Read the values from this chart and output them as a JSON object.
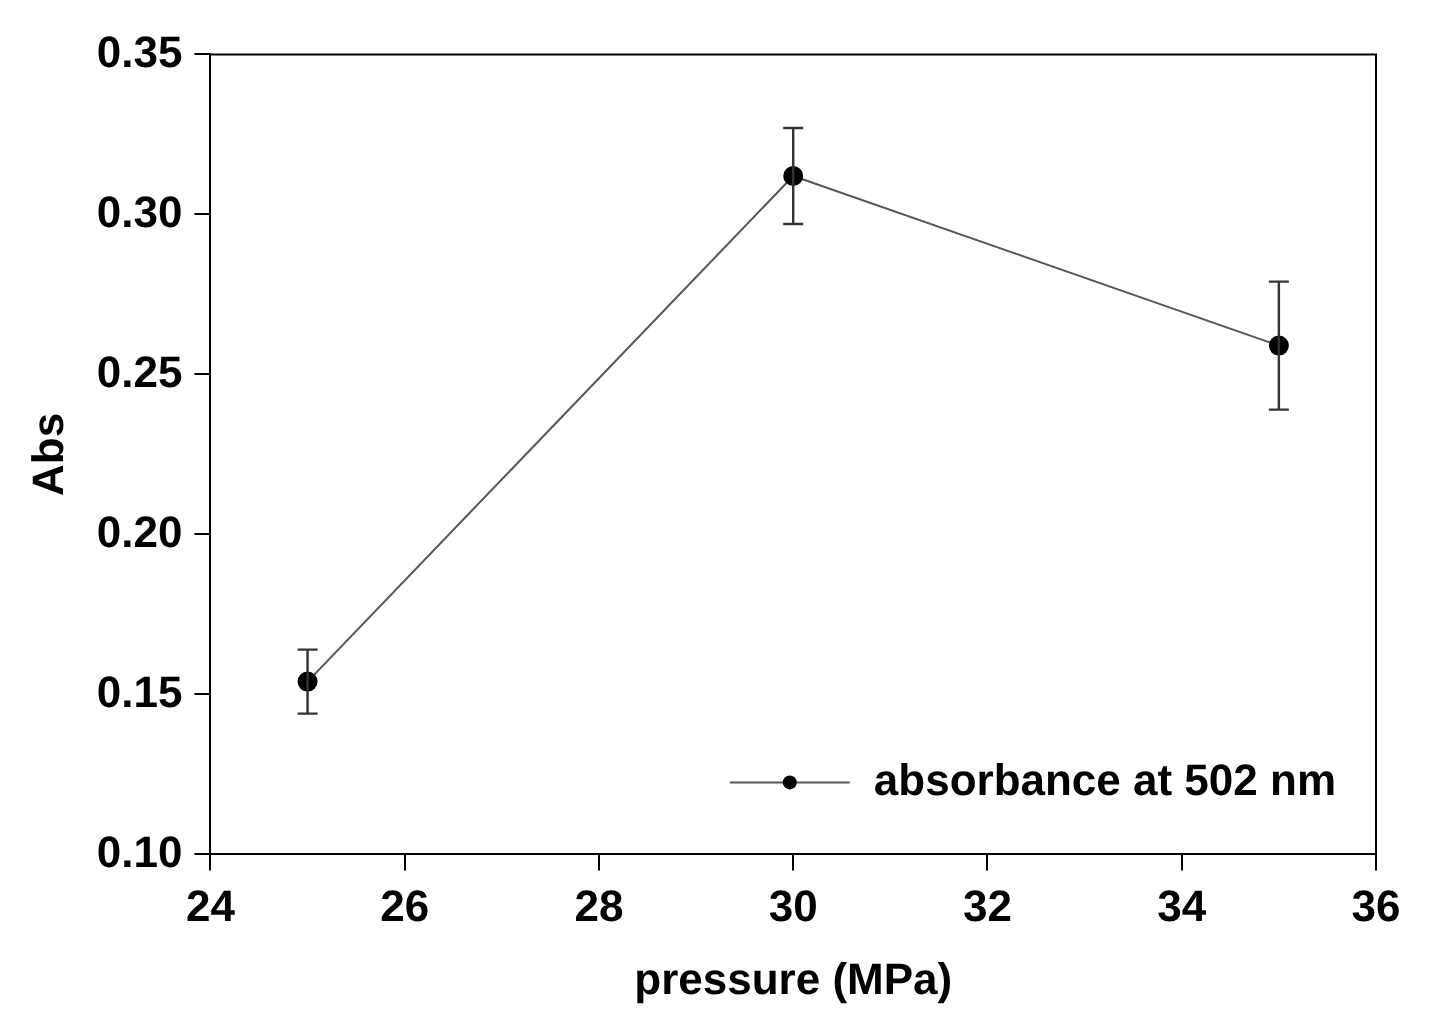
{
  "chart_data": {
    "type": "line",
    "xlabel": "pressure (MPa)",
    "ylabel": "Abs",
    "x": [
      25,
      30,
      35
    ],
    "series": [
      {
        "name": "absorbance at 502 nm",
        "color": "#000000",
        "values": [
          0.154,
          0.312,
          0.259
        ],
        "errors": [
          0.01,
          0.015,
          0.02
        ]
      }
    ],
    "xlim": [
      24,
      36
    ],
    "xticks": [
      24,
      26,
      28,
      30,
      32,
      34,
      36
    ],
    "ylim": [
      0.1,
      0.35
    ],
    "yticks": [
      {
        "value": 0.1,
        "label": "0.10"
      },
      0.15,
      {
        "value": 0.2,
        "label": "0.20"
      },
      0.25,
      {
        "value": 0.3,
        "label": "0.30"
      },
      0.35
    ],
    "grid": false,
    "legend": "bottom right",
    "marker": "circle",
    "line_style": "solid"
  }
}
